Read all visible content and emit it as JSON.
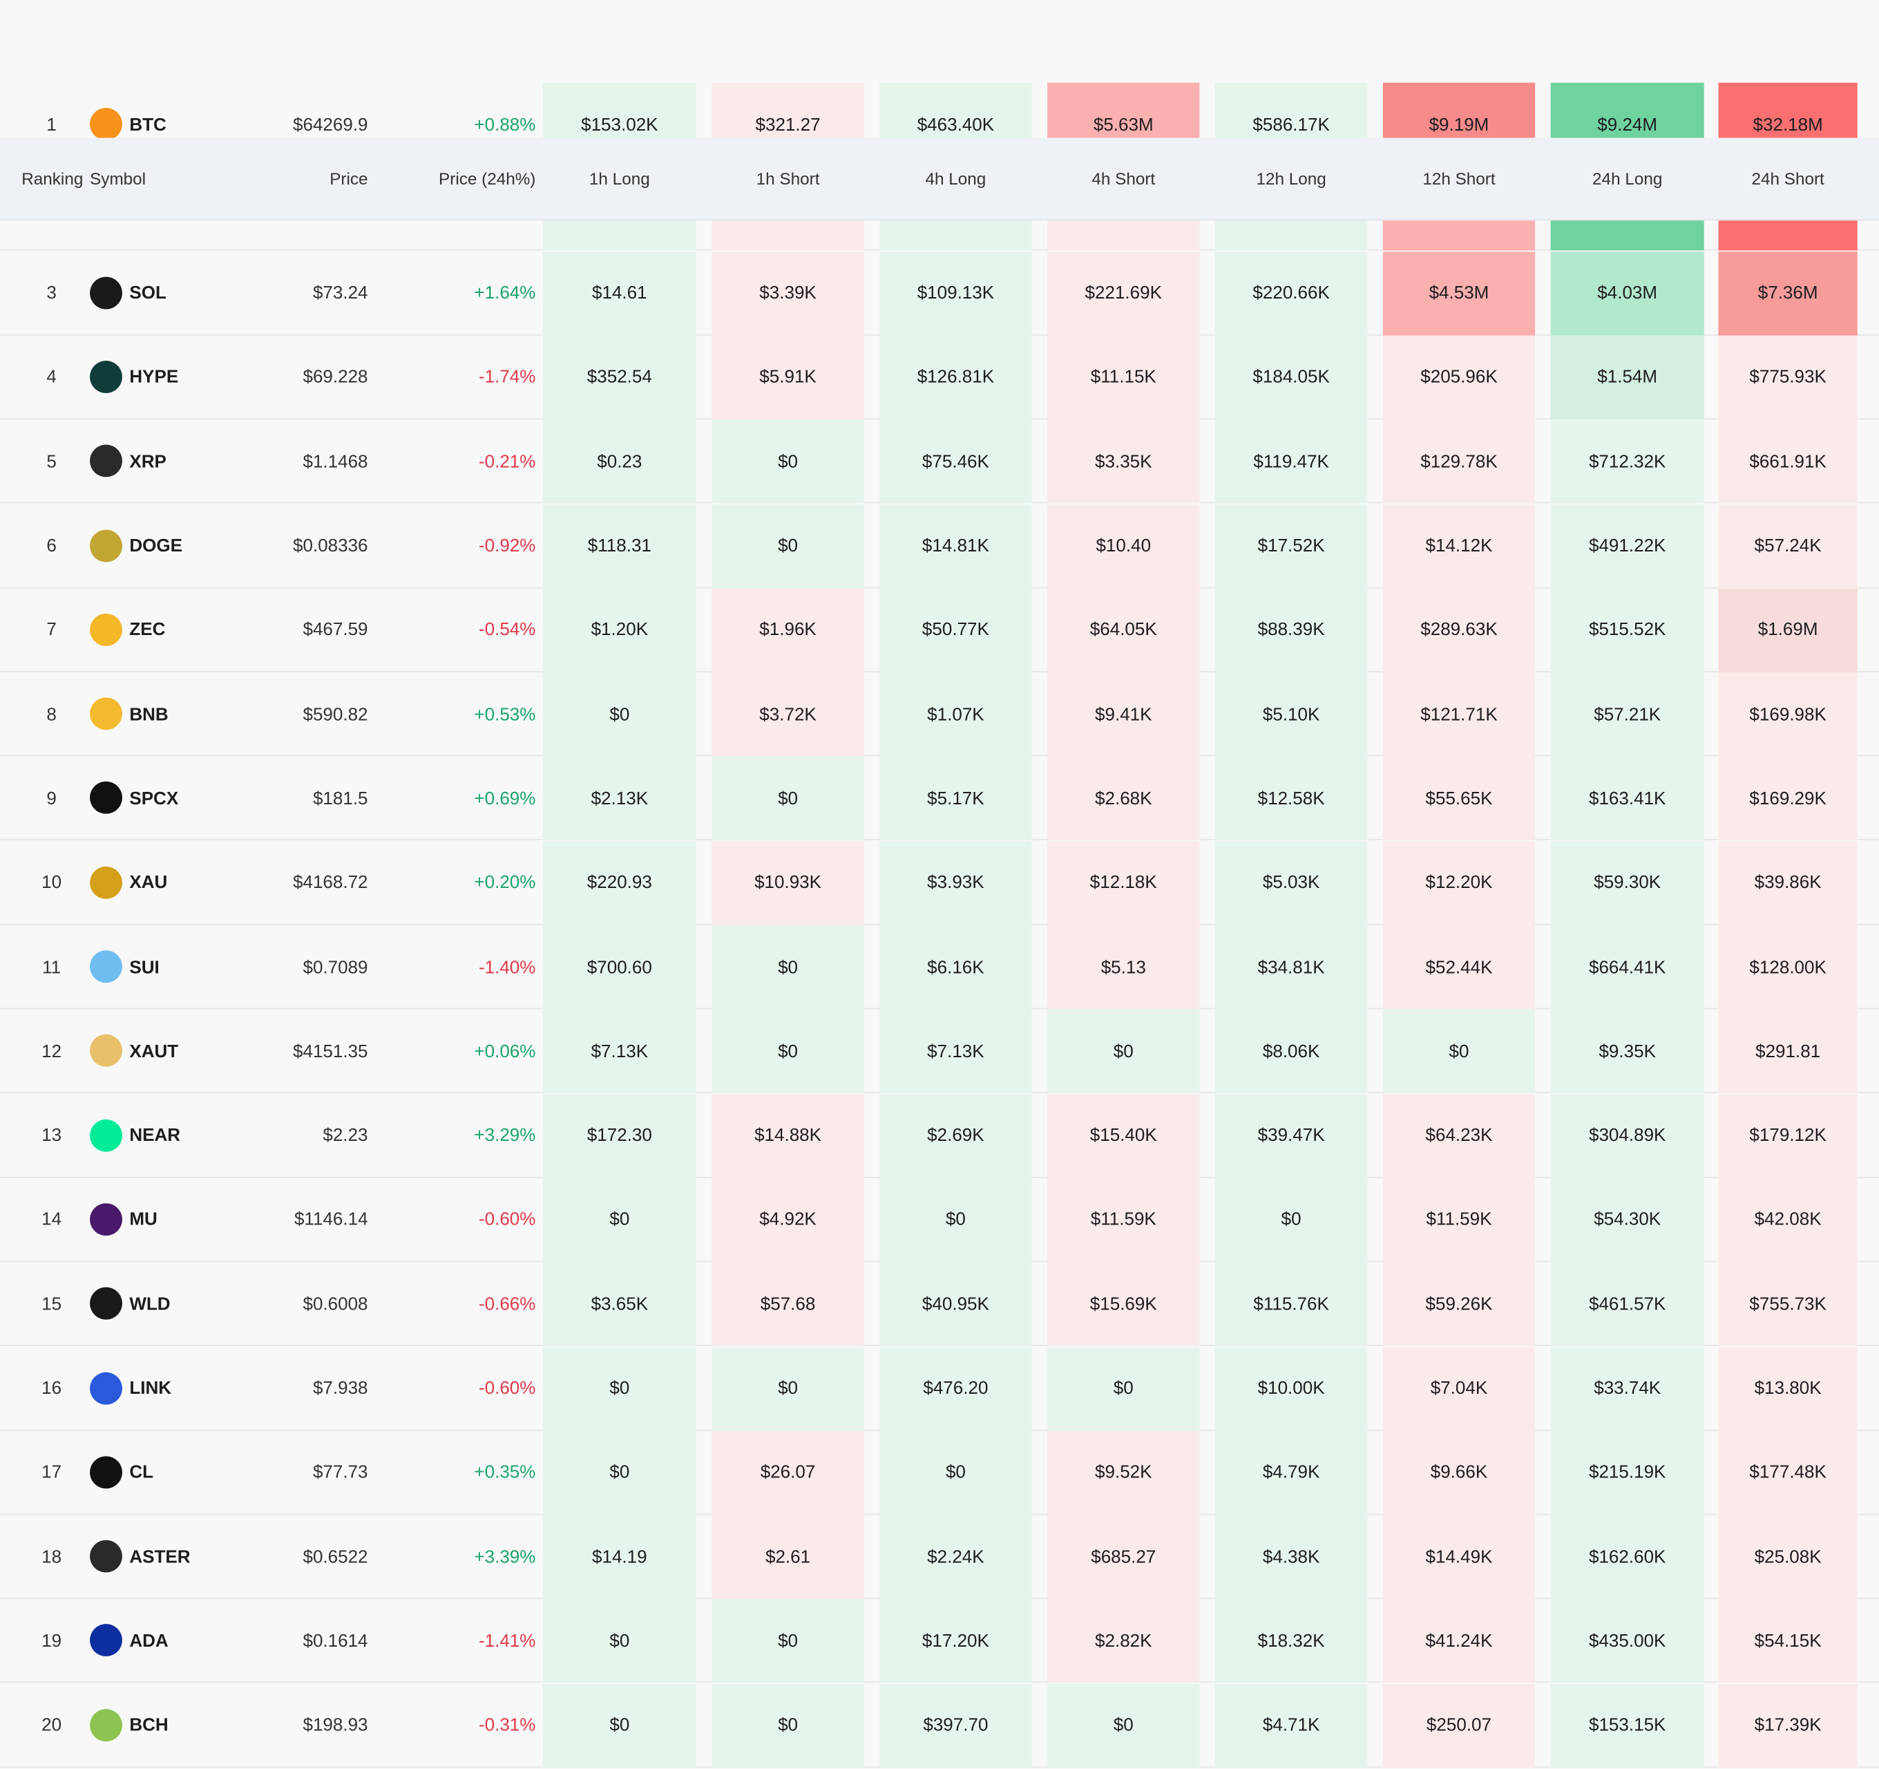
{
  "table": {
    "columns": [
      "Ranking",
      "Symbol",
      "Price",
      "Price (24h%)",
      "1h Long",
      "1h Short",
      "4h Long",
      "4h Short",
      "12h Long",
      "12h Short",
      "24h Long",
      "24h Short"
    ],
    "rows": [
      [
        "1",
        "BTC",
        "$64269.9",
        "+0.88%",
        "$153.02K",
        "$321.27",
        "$463.40K",
        "$5.63M",
        "$586.17K",
        "$9.19M",
        "$9.24M",
        "$32.18M"
      ],
      [
        "3",
        "SOL",
        "$73.24",
        "+1.64%",
        "$14.61",
        "$3.39K",
        "$109.13K",
        "$221.69K",
        "$220.66K",
        "$4.53M",
        "$4.03M",
        "$7.36M"
      ],
      [
        "4",
        "HYPE",
        "$69.228",
        "-1.74%",
        "$352.54",
        "$5.91K",
        "$126.81K",
        "$11.15K",
        "$184.05K",
        "$205.96K",
        "$1.54M",
        "$775.93K"
      ],
      [
        "5",
        "XRP",
        "$1.1468",
        "-0.21%",
        "$0.23",
        "$0",
        "$75.46K",
        "$3.35K",
        "$119.47K",
        "$129.78K",
        "$712.32K",
        "$661.91K"
      ],
      [
        "6",
        "DOGE",
        "$0.08336",
        "-0.92%",
        "$118.31",
        "$0",
        "$14.81K",
        "$10.40",
        "$17.52K",
        "$14.12K",
        "$491.22K",
        "$57.24K"
      ],
      [
        "7",
        "ZEC",
        "$467.59",
        "-0.54%",
        "$1.20K",
        "$1.96K",
        "$50.77K",
        "$64.05K",
        "$88.39K",
        "$289.63K",
        "$515.52K",
        "$1.69M"
      ],
      [
        "8",
        "BNB",
        "$590.82",
        "+0.53%",
        "$0",
        "$3.72K",
        "$1.07K",
        "$9.41K",
        "$5.10K",
        "$121.71K",
        "$57.21K",
        "$169.98K"
      ],
      [
        "9",
        "SPCX",
        "$181.5",
        "+0.69%",
        "$2.13K",
        "$0",
        "$5.17K",
        "$2.68K",
        "$12.58K",
        "$55.65K",
        "$163.41K",
        "$169.29K"
      ],
      [
        "10",
        "XAU",
        "$4168.72",
        "+0.20%",
        "$220.93",
        "$10.93K",
        "$3.93K",
        "$12.18K",
        "$5.03K",
        "$12.20K",
        "$59.30K",
        "$39.86K"
      ],
      [
        "11",
        "SUI",
        "$0.7089",
        "-1.40%",
        "$700.60",
        "$0",
        "$6.16K",
        "$5.13",
        "$34.81K",
        "$52.44K",
        "$664.41K",
        "$128.00K"
      ],
      [
        "12",
        "XAUT",
        "$4151.35",
        "+0.06%",
        "$7.13K",
        "$0",
        "$7.13K",
        "$0",
        "$8.06K",
        "$0",
        "$9.35K",
        "$291.81"
      ],
      [
        "13",
        "NEAR",
        "$2.23",
        "+3.29%",
        "$172.30",
        "$14.88K",
        "$2.69K",
        "$15.40K",
        "$39.47K",
        "$64.23K",
        "$304.89K",
        "$179.12K"
      ],
      [
        "14",
        "MU",
        "$1146.14",
        "-0.60%",
        "$0",
        "$4.92K",
        "$0",
        "$11.59K",
        "$0",
        "$11.59K",
        "$54.30K",
        "$42.08K"
      ],
      [
        "15",
        "WLD",
        "$0.6008",
        "-0.66%",
        "$3.65K",
        "$57.68",
        "$40.95K",
        "$15.69K",
        "$115.76K",
        "$59.26K",
        "$461.57K",
        "$755.73K"
      ],
      [
        "16",
        "LINK",
        "$7.938",
        "-0.60%",
        "$0",
        "$0",
        "$476.20",
        "$0",
        "$10.00K",
        "$7.04K",
        "$33.74K",
        "$13.80K"
      ],
      [
        "17",
        "CL",
        "$77.73",
        "+0.35%",
        "$0",
        "$26.07",
        "$0",
        "$9.52K",
        "$4.79K",
        "$9.66K",
        "$215.19K",
        "$177.48K"
      ],
      [
        "18",
        "ASTER",
        "$0.6522",
        "+3.39%",
        "$14.19",
        "$2.61",
        "$2.24K",
        "$685.27",
        "$4.38K",
        "$14.49K",
        "$162.60K",
        "$25.08K"
      ],
      [
        "19",
        "ADA",
        "$0.1614",
        "-1.41%",
        "$0",
        "$0",
        "$17.20K",
        "$2.82K",
        "$18.32K",
        "$41.24K",
        "$435.00K",
        "$54.15K"
      ],
      [
        "20",
        "BCH",
        "$198.93",
        "-0.31%",
        "$0",
        "$0",
        "$397.70",
        "$0",
        "$4.71K",
        "$250.07",
        "$153.15K",
        "$17.39K"
      ]
    ]
  }
}
